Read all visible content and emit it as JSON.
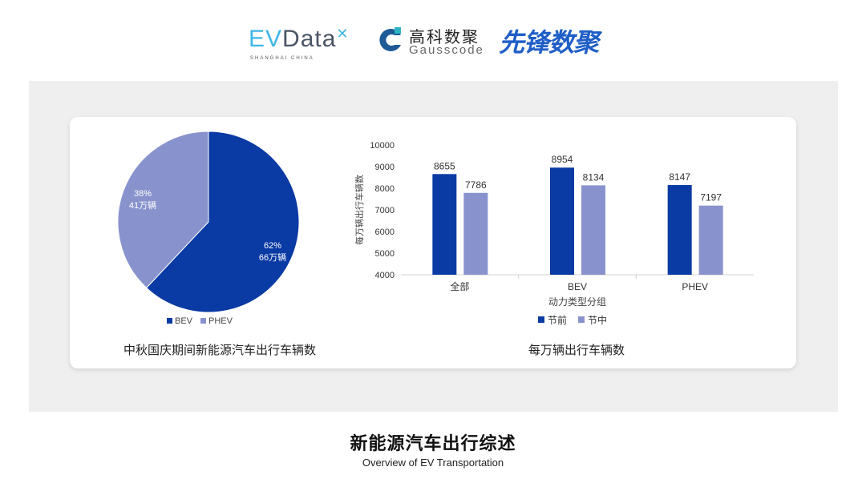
{
  "logos": {
    "evdata": {
      "name": "EVData",
      "sub": "SHANGHAI CHINA"
    },
    "gausscode": {
      "cn": "高科数聚",
      "en": "Gausscode"
    },
    "xianfeng": {
      "name": "先锋数聚"
    }
  },
  "colors": {
    "bev": "#0a3aa3",
    "phev": "#8893cd",
    "panel": "#efefef"
  },
  "footer": {
    "title": "新能源汽车出行综述",
    "subtitle": "Overview of EV Transportation"
  },
  "chart_data": [
    {
      "type": "pie",
      "title": "中秋国庆期间新能源汽车出行车辆数",
      "slices": [
        {
          "name": "BEV",
          "percent": 62,
          "label_pct": "62%",
          "label_val": "66万辆"
        },
        {
          "name": "PHEV",
          "percent": 38,
          "label_pct": "38%",
          "label_val": "41万辆"
        }
      ],
      "legend": "bottom-left"
    },
    {
      "type": "bar",
      "title": "每万辆出行车辆数",
      "xlabel": "动力类型分组",
      "ylabel": "每万辆出行车辆数",
      "categories": [
        "全部",
        "BEV",
        "PHEV"
      ],
      "series": [
        {
          "name": "节前",
          "values": [
            8655,
            8954,
            8147
          ]
        },
        {
          "name": "节中",
          "values": [
            7786,
            8134,
            7197
          ]
        }
      ],
      "ylim": [
        4000,
        10000
      ],
      "yticks": [
        4000,
        5000,
        6000,
        7000,
        8000,
        9000,
        10000
      ],
      "grid": false,
      "legend": "bottom"
    }
  ]
}
